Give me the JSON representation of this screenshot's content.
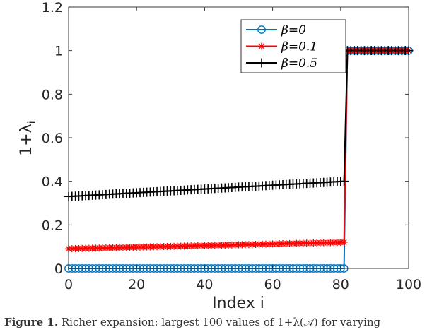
{
  "chart_data": {
    "type": "line",
    "xlabel": "Index i",
    "ylabel": "1+λ",
    "ylabel_subscript": "i",
    "xlim": [
      0,
      100
    ],
    "ylim": [
      0,
      1.2
    ],
    "xticks": [
      "0",
      "20",
      "40",
      "60",
      "80",
      "100"
    ],
    "yticks": [
      "0",
      "0.2",
      "0.4",
      "0.6",
      "0.8",
      "1",
      "1.2"
    ],
    "legend_position": "top-right",
    "grid": false,
    "jump_index": 82,
    "series": [
      {
        "name": "β=0",
        "color": "#0072BD",
        "marker": "circle",
        "low_start": 0.0,
        "low_end": 0.0,
        "high": 1.0
      },
      {
        "name": "β=0.1",
        "color": "#FF0000",
        "marker": "asterisk",
        "low_start": 0.09,
        "low_end": 0.12,
        "high": 1.0
      },
      {
        "name": "β=0.5",
        "color": "#000000",
        "marker": "plus",
        "low_start": 0.33,
        "low_end": 0.4,
        "high": 1.0
      }
    ]
  },
  "caption": {
    "label": "Figure 1.",
    "text": "Richer expansion: largest 100 values of 1+λ(𝒜) for varying"
  }
}
